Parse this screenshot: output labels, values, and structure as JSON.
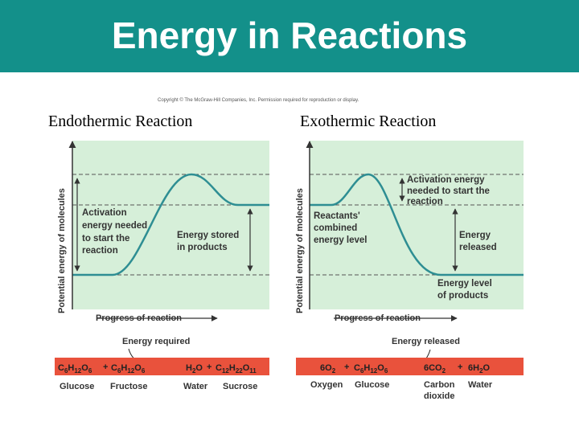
{
  "title": "Energy in Reactions",
  "copyright": "Copyright © The McGraw-Hill Companies, Inc. Permission required for reproduction or display.",
  "colors": {
    "header": "#13908a",
    "panel": "#d6efd9",
    "curve": "#2e8e93",
    "bar": "#e9523c"
  },
  "left": {
    "subtitle": "Endothermic Reaction",
    "y_axis": "Potential energy of molecules",
    "x_axis": "Progress of reaction",
    "activation_label": [
      "Activation",
      "energy needed",
      "to start the",
      "reaction"
    ],
    "stored_label": [
      "Energy stored",
      "in products"
    ],
    "energy_caption": "Energy required",
    "equation": {
      "reactant1": {
        "base": "C",
        "s1": "6",
        "m1": "H",
        "s2": "12",
        "m2": "O",
        "s3": "6"
      },
      "plus1": "+",
      "reactant2": {
        "base": "C",
        "s1": "6",
        "m1": "H",
        "s2": "12",
        "m2": "O",
        "s3": "6"
      },
      "product1": {
        "base": "H",
        "s1": "2",
        "m1": "O"
      },
      "plus2": "+",
      "product2": {
        "base": "C",
        "s1": "12",
        "m1": "H",
        "s2": "22",
        "m2": "O",
        "s3": "11"
      }
    },
    "names": [
      "Glucose",
      "Fructose",
      "Water",
      "Sucrose"
    ]
  },
  "right": {
    "subtitle": "Exothermic Reaction",
    "y_axis": "Potential energy of molecules",
    "x_axis": "Progress of reaction",
    "activation_label": [
      "Activation energy",
      "needed to start the",
      "reaction"
    ],
    "reactants_label": [
      "Reactants'",
      "combined",
      "energy level"
    ],
    "released_label": [
      "Energy",
      "released"
    ],
    "products_label": [
      "Energy level",
      "of products"
    ],
    "energy_caption": "Energy released",
    "equation": {
      "reactant1": {
        "coef": "6O",
        "s1": "2"
      },
      "plus1": "+",
      "reactant2": {
        "base": "C",
        "s1": "6",
        "m1": "H",
        "s2": "12",
        "m2": "O",
        "s3": "6"
      },
      "product1": {
        "coef": "6CO",
        "s1": "2"
      },
      "plus2": "+",
      "product2": {
        "coef": "6H",
        "s1": "2",
        "m1": "O"
      }
    },
    "names": [
      "Oxygen",
      "Glucose",
      "Carbon",
      "dioxide",
      "Water"
    ]
  }
}
